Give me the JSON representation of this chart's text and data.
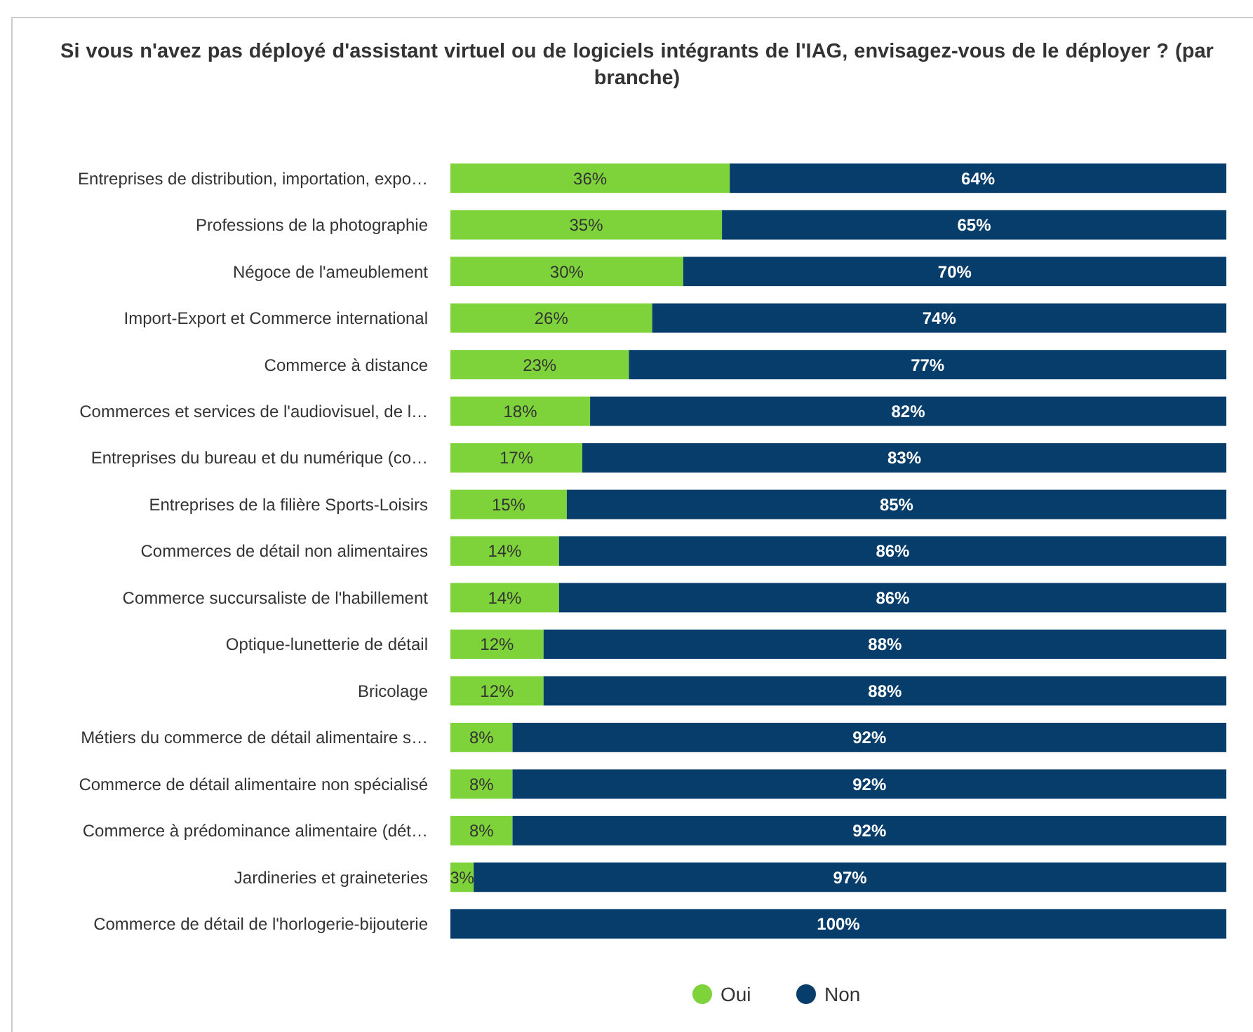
{
  "chart_data": {
    "type": "bar",
    "orientation": "horizontal",
    "stacked": true,
    "title": "Si vous n'avez pas déployé d'assistant virtuel ou de logiciels intégrants de l'IAG, envisagez-vous de le déployer ? (par branche)",
    "categories": [
      "Entreprises de distribution, importation, expo…",
      "Professions de la photographie",
      "Négoce de l'ameublement",
      "Import-Export et Commerce international",
      "Commerce à distance",
      "Commerces et services de l'audiovisuel, de l…",
      "Entreprises du bureau et du numérique (co…",
      "Entreprises de la filière Sports-Loisirs",
      "Commerces de détail non alimentaires",
      "Commerce succursaliste de l'habillement",
      "Optique-lunetterie de détail",
      "Bricolage",
      "Métiers du commerce de détail alimentaire s…",
      "Commerce de détail alimentaire non spécialisé",
      "Commerce à prédominance alimentaire (dét…",
      "Jardineries et graineteries",
      "Commerce de détail de l'horlogerie-bijouterie"
    ],
    "series": [
      {
        "name": "Oui",
        "color": "#7ed33b",
        "values": [
          36,
          35,
          30,
          26,
          23,
          18,
          17,
          15,
          14,
          14,
          12,
          12,
          8,
          8,
          8,
          3,
          0
        ],
        "value_labels": [
          "36%",
          "35%",
          "30%",
          "26%",
          "23%",
          "18%",
          "17%",
          "15%",
          "14%",
          "14%",
          "12%",
          "12%",
          "8%",
          "8%",
          "8%",
          "3%",
          null
        ]
      },
      {
        "name": "Non",
        "color": "#063d6b",
        "values": [
          64,
          65,
          70,
          74,
          77,
          82,
          83,
          85,
          86,
          86,
          88,
          88,
          92,
          92,
          92,
          97,
          100
        ],
        "value_labels": [
          "64%",
          "65%",
          "70%",
          "74%",
          "77%",
          "82%",
          "83%",
          "85%",
          "86%",
          "86%",
          "88%",
          "88%",
          "92%",
          "92%",
          "92%",
          "97%",
          "100%"
        ]
      }
    ],
    "legend": "bottom"
  }
}
